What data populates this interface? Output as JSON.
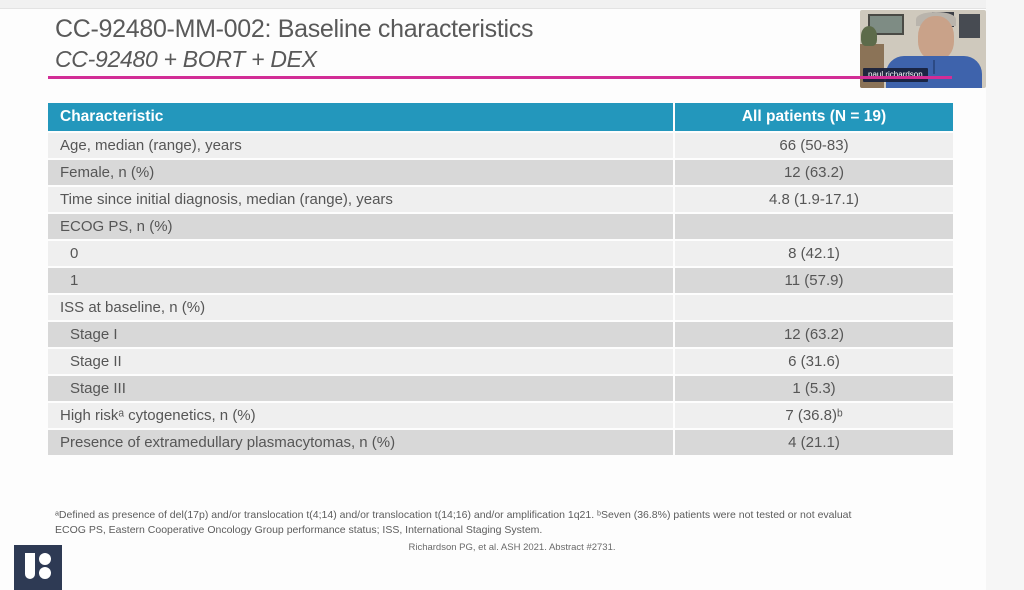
{
  "slide": {
    "title": "CC-92480-MM-002: Baseline characteristics",
    "subtitle": "CC-92480 + BORT + DEX"
  },
  "webcam": {
    "name_label": "paul richardson"
  },
  "table": {
    "header": {
      "characteristic": "Characteristic",
      "patients": "All patients (N = 19)"
    },
    "rows": [
      {
        "label": "Age, median (range), years",
        "value": "66 (50-83)"
      },
      {
        "label": "Female, n (%)",
        "value": "12 (63.2)"
      },
      {
        "label": "Time since initial diagnosis, median (range), years",
        "value": "4.8 (1.9-17.1)"
      },
      {
        "label": "ECOG PS, n (%)",
        "value": ""
      },
      {
        "label": "0",
        "value": "8 (42.1)"
      },
      {
        "label": "1",
        "value": "11 (57.9)"
      },
      {
        "label": "ISS at baseline, n (%)",
        "value": ""
      },
      {
        "label": "Stage I",
        "value": "12 (63.2)"
      },
      {
        "label": "Stage II",
        "value": "6 (31.6)"
      },
      {
        "label": "Stage III",
        "value": "1 (5.3)"
      },
      {
        "label": "High riskᵃ cytogenetics, n (%)",
        "value": "7 (36.8)ᵇ"
      },
      {
        "label": "Presence of extramedullary plasmacytomas, n (%)",
        "value": "4 (21.1)"
      }
    ]
  },
  "footnotes": {
    "line1": "ᵃDefined as presence of del(17p) and/or translocation t(4;14) and/or translocation t(14;16) and/or amplification 1q21. ᵇSeven (36.8%) patients were not tested or not evaluat",
    "line2": "ECOG PS, Eastern Cooperative Oncology Group performance status; ISS, International Staging System.",
    "citation": "Richardson PG, et al. ASH 2021. Abstract #2731."
  },
  "colors": {
    "header_teal": "#2397BC",
    "accent_magenta": "#D22D96",
    "row_dark": "#D8D8D8",
    "row_light": "#EFEFEF",
    "logo_navy": "#2E3A54"
  }
}
